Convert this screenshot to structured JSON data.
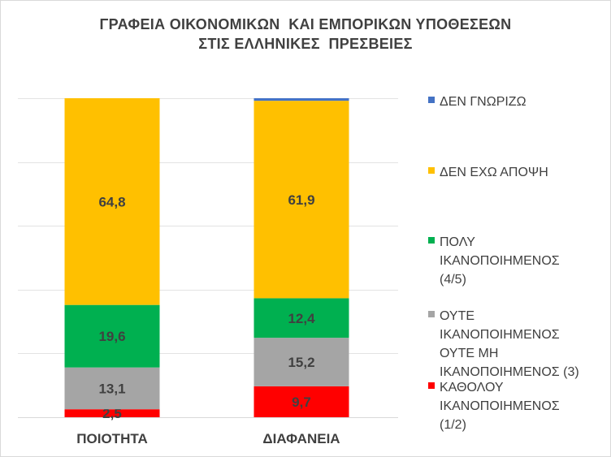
{
  "chart_data": {
    "type": "bar",
    "stacked": true,
    "title": "ΓΡΑΦΕΙΑ ΟΙΚΟΝΟΜΙΚΩΝ  ΚΑΙ ΕΜΠΟΡΙΚΩΝ ΥΠΟΘΕΣΕΩΝ\nΣΤΙΣ ΕΛΛΗΝΙΚΕΣ  ΠΡΕΣΒΕΙΕΣ",
    "categories": [
      "ΠΟΙΟΤΗΤΑ",
      "ΔΙΑΦΑΝΕΙΑ"
    ],
    "ylim": [
      0,
      100
    ],
    "grid": true,
    "legend_position": "right",
    "series": [
      {
        "name": "ΚΑΘΟΛΟΥ ΙΚΑΝΟΠΟΙΗΜΕΝΟΣ (1/2)",
        "color": "#ff0000",
        "values": [
          2.5,
          9.7
        ],
        "labels": [
          "2,5",
          "9,7"
        ]
      },
      {
        "name": "ΟΥΤΕ ΙΚΑΝΟΠΟΙΗΜΕΝΟΣ ΟΥΤΕ ΜΗ ΙΚΑΝΟΠΟΙΗΜΕΝΟΣ (3)",
        "color": "#a5a5a5",
        "values": [
          13.1,
          15.2
        ],
        "labels": [
          "13,1",
          "15,2"
        ]
      },
      {
        "name": "ΠΟΛΥ ΙΚΑΝΟΠΟΙΗΜΕΝΟΣ (4/5)",
        "color": "#00b050",
        "values": [
          19.6,
          12.4
        ],
        "labels": [
          "19,6",
          "12,4"
        ]
      },
      {
        "name": "ΔΕΝ ΕΧΩ ΑΠΟΨΗ",
        "color": "#ffc000",
        "values": [
          64.8,
          61.9
        ],
        "labels": [
          "64,8",
          "61,9"
        ]
      },
      {
        "name": "ΔΕΝ ΓΝΩΡΙΖΩ",
        "color": "#4472c4",
        "values": [
          0,
          0.8
        ],
        "labels": [
          "",
          ""
        ]
      }
    ]
  },
  "legend": {
    "items": [
      {
        "label": "ΔΕΝ ΓΝΩΡΙΖΩ",
        "color": "#4472c4"
      },
      {
        "label": "ΔΕΝ ΕΧΩ ΑΠΟΨΗ",
        "color": "#ffc000"
      },
      {
        "label": "ΠΟΛΥ\nΙΚΑΝΟΠΟΙΗΜΕΝΟΣ\n(4/5)",
        "color": "#00b050"
      },
      {
        "label": "ΟΥΤΕ\nΙΚΑΝΟΠΟΙΗΜΕΝΟΣ\nΟΥΤΕ ΜΗ\nΙΚΑΝΟΠΟΙΗΜΕΝΟΣ (3)",
        "color": "#a5a5a5"
      },
      {
        "label": "ΚΑΘΟΛΟΥ\nΙΚΑΝΟΠΟΙΗΜΕΝΟΣ\n(1/2)",
        "color": "#ff0000"
      }
    ]
  }
}
